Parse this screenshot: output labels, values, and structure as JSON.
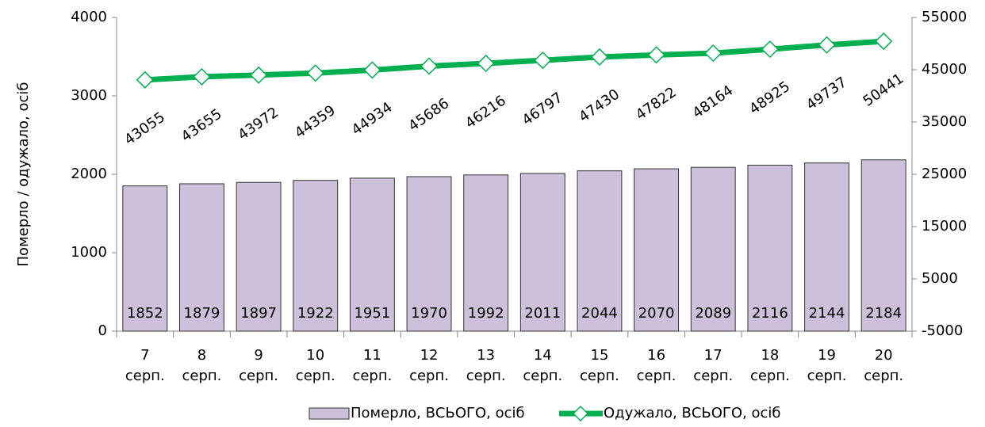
{
  "chart_data": {
    "type": "bar",
    "y_label": "Померло / одужало, осіб",
    "categories": [
      "7 серп.",
      "8 серп.",
      "9 серп.",
      "10 серп.",
      "11 серп.",
      "12 серп.",
      "13 серп.",
      "14 серп.",
      "15 серп.",
      "16 серп.",
      "17 серп.",
      "18 серп.",
      "19 серп.",
      "20 серп."
    ],
    "series": [
      {
        "name": "Померло, ВСЬОГО, осіб",
        "type": "bar",
        "color": "#ccc0da",
        "values": [
          1852,
          1879,
          1897,
          1922,
          1951,
          1970,
          1992,
          2011,
          2044,
          2070,
          2089,
          2116,
          2144,
          2184
        ]
      },
      {
        "name": "Одужало, ВСЬОГО, осіб",
        "type": "line",
        "axis": "y2",
        "color": "#00b050",
        "values": [
          43055,
          43655,
          43972,
          44359,
          44934,
          45686,
          46216,
          46797,
          47430,
          47822,
          48164,
          48925,
          49737,
          50441
        ]
      }
    ],
    "ylim": [
      0,
      4000
    ],
    "yticks": [
      0,
      1000,
      2000,
      3000,
      4000
    ],
    "y2lim": [
      -5000,
      55000
    ],
    "y2ticks": [
      -5000,
      5000,
      15000,
      25000,
      35000,
      45000,
      55000
    ],
    "legend": "bottom"
  }
}
